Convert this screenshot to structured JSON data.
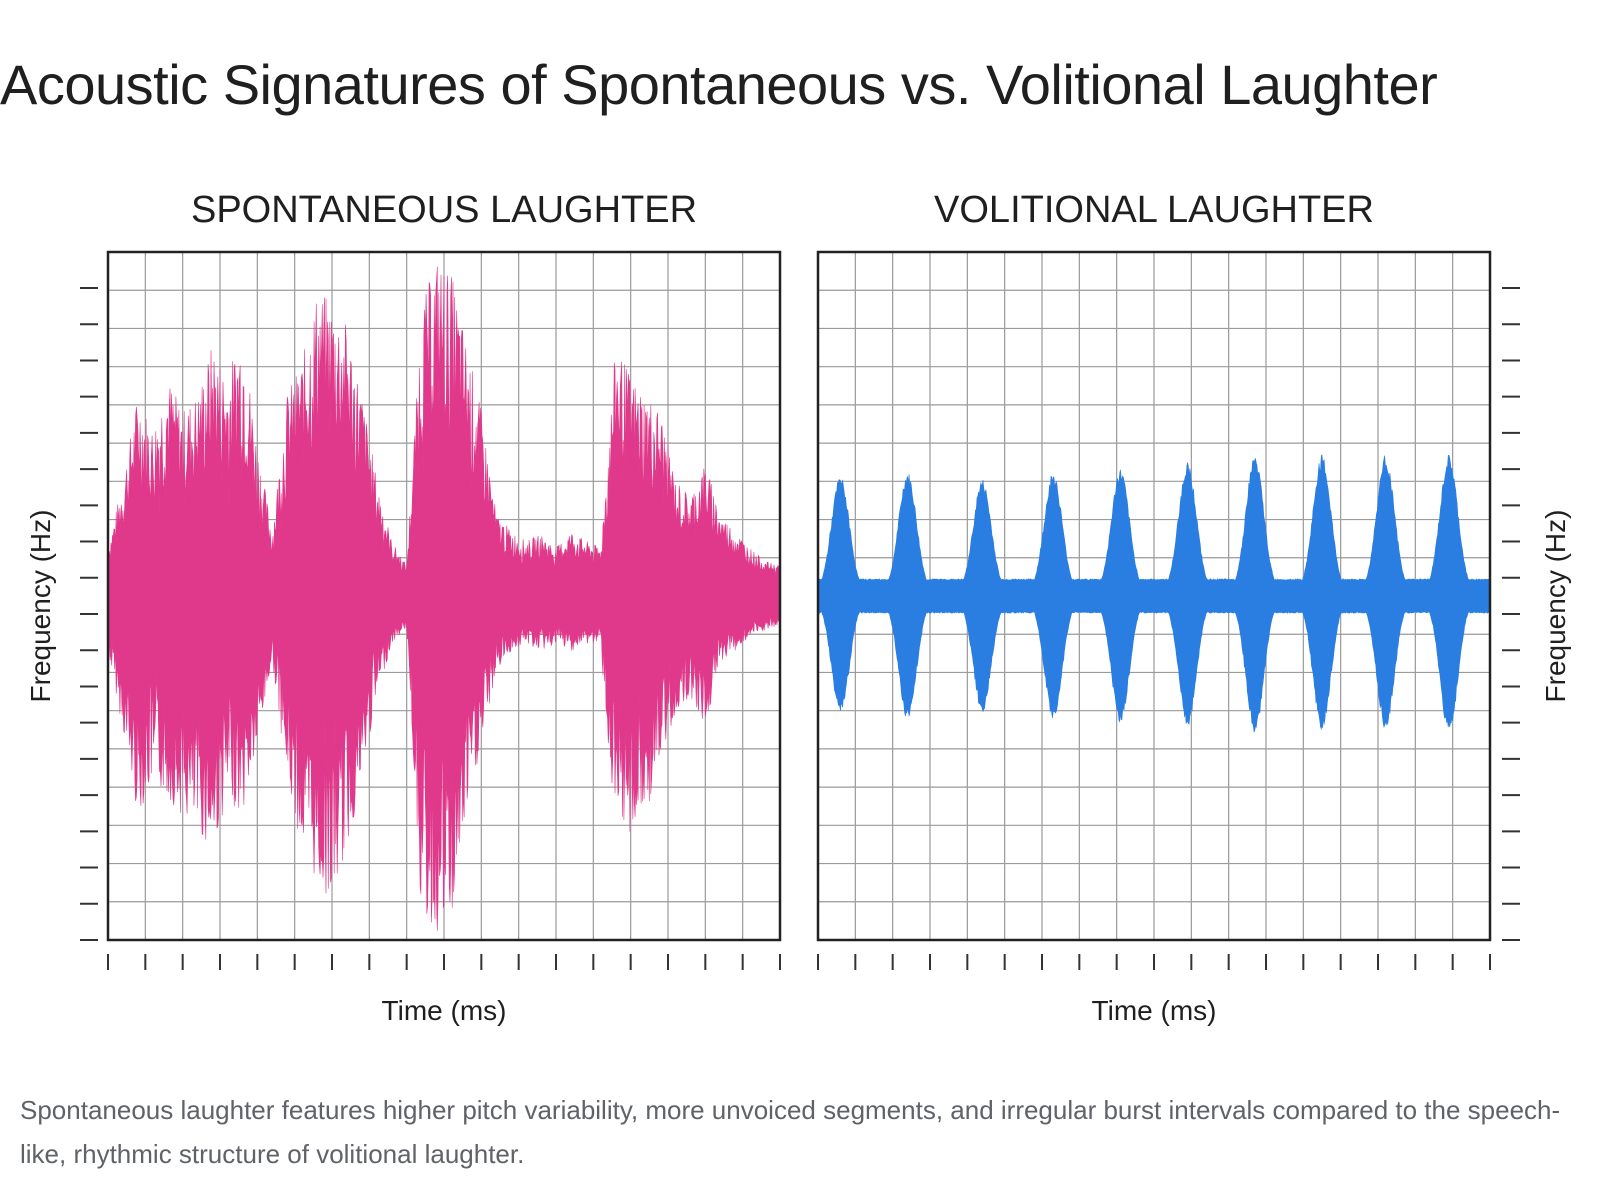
{
  "page": {
    "title": "Acoustic Signatures of Spontaneous vs. Volitional Laughter",
    "caption": "Spontaneous laughter features higher pitch variability, more unvoiced segments, and irregular burst intervals compared to the speech-like, rhythmic structure of volitional laughter."
  },
  "chart_data": [
    {
      "type": "area",
      "title": "SPONTANEOUS LAUGHTER",
      "xlabel": "Time (ms)",
      "ylabel": "Frequency (Hz)",
      "ylabel_side": "left",
      "color": "#e0388a",
      "grid": true,
      "x_ticks": 19,
      "y_ticks": 19,
      "x_range": [
        0,
        18
      ],
      "y_range": [
        -1,
        1
      ],
      "baseline": 0,
      "description_series": "amplitude envelope, normalized -1 to 1",
      "envelope": {
        "x": [
          0,
          0.4,
          0.8,
          1.2,
          1.6,
          2.0,
          2.4,
          2.8,
          3.2,
          3.6,
          4.0,
          4.4,
          4.8,
          5.2,
          5.6,
          6.0,
          6.4,
          6.8,
          7.2,
          7.6,
          8.0,
          8.4,
          8.8,
          9.2,
          9.6,
          10.0,
          10.4,
          10.8,
          11.2,
          11.6,
          12.0,
          12.4,
          12.8,
          13.2,
          13.6,
          14.0,
          14.4,
          14.8,
          15.2,
          15.6,
          16.0,
          16.4,
          16.8,
          17.2,
          17.6,
          18.0
        ],
        "upper": [
          0.1,
          0.3,
          0.55,
          0.45,
          0.6,
          0.5,
          0.55,
          0.7,
          0.6,
          0.75,
          0.4,
          0.15,
          0.55,
          0.65,
          0.85,
          0.82,
          0.75,
          0.55,
          0.3,
          0.12,
          0.05,
          0.8,
          0.95,
          0.9,
          0.7,
          0.5,
          0.2,
          0.15,
          0.12,
          0.14,
          0.1,
          0.15,
          0.12,
          0.1,
          0.7,
          0.6,
          0.55,
          0.5,
          0.3,
          0.25,
          0.35,
          0.2,
          0.15,
          0.1,
          0.06,
          0.05
        ],
        "lower": [
          -0.12,
          -0.35,
          -0.6,
          -0.5,
          -0.55,
          -0.6,
          -0.65,
          -0.7,
          -0.55,
          -0.6,
          -0.4,
          -0.15,
          -0.5,
          -0.7,
          -0.8,
          -0.85,
          -0.7,
          -0.5,
          -0.25,
          -0.1,
          -0.05,
          -0.9,
          -0.95,
          -0.92,
          -0.6,
          -0.4,
          -0.18,
          -0.12,
          -0.1,
          -0.12,
          -0.1,
          -0.12,
          -0.1,
          -0.1,
          -0.7,
          -0.65,
          -0.6,
          -0.45,
          -0.3,
          -0.25,
          -0.35,
          -0.15,
          -0.12,
          -0.08,
          -0.06,
          -0.05
        ]
      }
    },
    {
      "type": "area",
      "title": "VOLITIONAL LAUGHTER",
      "xlabel": "Time (ms)",
      "ylabel": "Frequency (Hz)",
      "ylabel_side": "right",
      "color": "#2a7de1",
      "grid": true,
      "x_ticks": 19,
      "y_ticks": 19,
      "x_range": [
        0,
        18
      ],
      "y_range": [
        -1,
        1
      ],
      "baseline": 0,
      "bursts": {
        "centers": [
          0.6,
          2.4,
          4.4,
          6.3,
          8.1,
          9.9,
          11.7,
          13.5,
          15.2,
          16.9
        ],
        "upper": [
          0.34,
          0.35,
          0.33,
          0.35,
          0.36,
          0.38,
          0.4,
          0.4,
          0.4,
          0.4
        ],
        "lower": [
          -0.33,
          -0.35,
          -0.33,
          -0.35,
          -0.36,
          -0.37,
          -0.39,
          -0.38,
          -0.38,
          -0.39
        ],
        "floor": 0.04
      }
    }
  ]
}
